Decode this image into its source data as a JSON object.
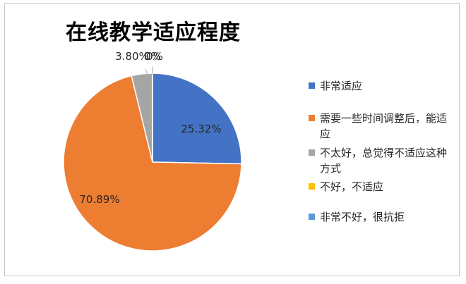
{
  "chart_data": {
    "type": "pie",
    "title": "在线教学适应程度",
    "categories": [
      "非常适应",
      "需要一些时间调整后，能适应",
      "不太好，总觉得不适应这种方式",
      "不好，不适应",
      "非常不好，很抗拒"
    ],
    "values": [
      25.32,
      70.89,
      3.8,
      0,
      0
    ],
    "data_labels": [
      "25.32%",
      "70.89%",
      "3.80%",
      "0%",
      "0%"
    ],
    "colors": [
      "#4472c4",
      "#ed7d31",
      "#a5a5a5",
      "#ffc000",
      "#5b9bd5"
    ],
    "legend_position": "right"
  }
}
